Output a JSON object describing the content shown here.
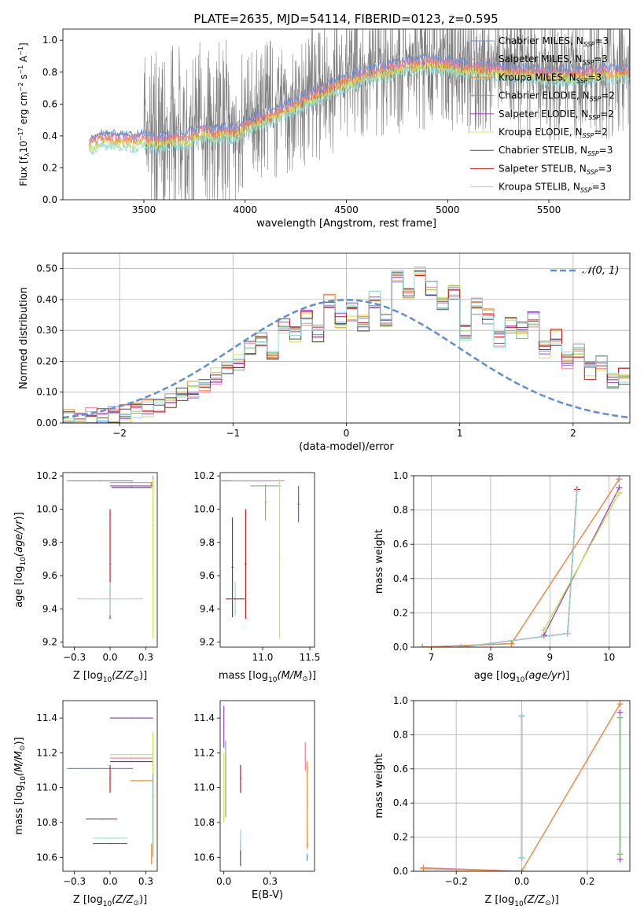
{
  "figure_title": "PLATE=2635, MJD=54114, FIBERID=0123, z=0.595",
  "colors": {
    "chabrier_miles": "#6a8fd8",
    "salpeter_miles": "#f07ca0",
    "kroupa_miles": "#f0903c",
    "chabrier_elodie": "#7fb07f",
    "salpeter_elodie": "#a040c8",
    "kroupa_elodie": "#c8e850",
    "chabrier_stelib": "#505050",
    "salpeter_stelib": "#c02020",
    "kroupa_stelib": "#90d8e0",
    "spectrum": "#808080",
    "gaussian": "#5b8fd6",
    "grid": "#b0b0b0"
  },
  "legend_models": [
    "Chabrier MILES, N_SSP=3",
    "Salpeter MILES, N_SSP=3",
    "Kroupa MILES, N_SSP=3",
    "Chabrier ELODIE, N_SSP=2",
    "Salpeter ELODIE, N_SSP=2",
    "Kroupa ELODIE, N_SSP=2",
    "Chabrier STELIB, N_SSP=3",
    "Salpeter STELIB, N_SSP=3",
    "Kroupa STELIB, N_SSP=3"
  ],
  "chart_data": [
    {
      "id": "spectrum",
      "type": "line",
      "xlabel": "wavelength [Angstrom, rest frame]",
      "ylabel": "Flux [f_λ 10^-17 erg cm^-2 s^-1 A^-1]",
      "xlim": [
        3100,
        5900
      ],
      "ylim": [
        0,
        1.07
      ],
      "xticks": [
        3500,
        4000,
        4500,
        5000,
        5500
      ],
      "yticks": [
        0.0,
        0.2,
        0.4,
        0.6,
        0.8,
        1.0
      ],
      "grid": false,
      "legend_loc": "upper right",
      "data_start": 3230,
      "noise_start": 3500,
      "continuum": {
        "x": [
          3230,
          3260,
          3300,
          3350,
          3400,
          3450,
          3500,
          3550,
          3600,
          3650,
          3700,
          3750,
          3800,
          3850,
          3900,
          3950,
          4000,
          4100,
          4200,
          4300,
          4400,
          4500,
          4600,
          4700,
          4800,
          4900,
          5000,
          5100,
          5200,
          5300,
          5400,
          5500,
          5600,
          5700,
          5800
        ],
        "y": [
          0.37,
          0.4,
          0.42,
          0.41,
          0.41,
          0.4,
          0.42,
          0.4,
          0.4,
          0.42,
          0.41,
          0.44,
          0.46,
          0.45,
          0.47,
          0.45,
          0.5,
          0.55,
          0.6,
          0.66,
          0.72,
          0.78,
          0.82,
          0.85,
          0.88,
          0.89,
          0.88,
          0.86,
          0.85,
          0.84,
          0.83,
          0.82,
          0.82,
          0.83,
          0.83
        ]
      }
    },
    {
      "id": "residuals",
      "type": "bar",
      "xlabel": "(data-model)/error",
      "ylabel": "Normed distribution",
      "xlim": [
        -2.5,
        2.5
      ],
      "ylim": [
        0,
        0.55
      ],
      "xticks": [
        -2,
        -1,
        0,
        1,
        2
      ],
      "yticks": [
        0.0,
        0.1,
        0.2,
        0.3,
        0.4,
        0.5
      ],
      "grid": true,
      "legend": "𝒩(0, 1)",
      "legend_loc": "upper right",
      "bin_width": 0.1,
      "bin_edges_from": -2.6,
      "counts": [
        0.01,
        0.015,
        0.015,
        0.02,
        0.025,
        0.025,
        0.03,
        0.04,
        0.05,
        0.06,
        0.075,
        0.09,
        0.11,
        0.13,
        0.15,
        0.17,
        0.2,
        0.24,
        0.27,
        0.23,
        0.32,
        0.29,
        0.34,
        0.29,
        0.39,
        0.33,
        0.36,
        0.32,
        0.4,
        0.34,
        0.47,
        0.42,
        0.48,
        0.43,
        0.39,
        0.42,
        0.29,
        0.38,
        0.34,
        0.27,
        0.32,
        0.3,
        0.34,
        0.24,
        0.28,
        0.2,
        0.23,
        0.17,
        0.19,
        0.14,
        0.15,
        0.11,
        0.12,
        0.09,
        0.09,
        0.07,
        0.06,
        0.05,
        0.04,
        0.04
      ],
      "gaussian": {
        "mean": 0,
        "sigma": 1
      }
    },
    {
      "id": "age_vs_Z",
      "type": "scatter",
      "xlabel": "Z [log10(Z/Z⊙)]",
      "ylabel": "age  [log10(age/yr)]",
      "xlim": [
        -0.33,
        0.33
      ],
      "ylim": [
        9.17,
        10.22
      ],
      "xticks": [
        -0.25,
        0.0,
        0.25
      ],
      "yticks": [
        9.2,
        9.4,
        9.6,
        9.8,
        10.0,
        10.2
      ],
      "grid": false,
      "points": [
        {
          "model": "chabrier_miles",
          "x": -0.07,
          "xerr": 0.23,
          "y": 10.17,
          "yerr": 0.0
        },
        {
          "model": "salpeter_miles",
          "x": 0.15,
          "xerr": 0.15,
          "y": 10.16,
          "yerr": 0.0
        },
        {
          "model": "kroupa_miles",
          "x": 0.29,
          "xerr": 0.01,
          "y": 10.15,
          "yerr": 0.01
        },
        {
          "model": "chabrier_elodie",
          "x": 0.3,
          "xerr": 0.005,
          "y": 9.9,
          "yerr": 0.3
        },
        {
          "model": "salpeter_elodie",
          "x": 0.15,
          "xerr": 0.15,
          "y": 10.14,
          "yerr": 0.0
        },
        {
          "model": "kroupa_elodie",
          "x": 0.3,
          "xerr": 0.005,
          "y": 9.7,
          "yerr": 0.48
        },
        {
          "model": "chabrier_stelib",
          "x": 0.15,
          "xerr": 0.14,
          "y": 10.13,
          "yerr": 0.0
        },
        {
          "model": "salpeter_stelib",
          "x": 0.0,
          "xerr": 0.0,
          "y": 9.67,
          "yerr": 0.33
        },
        {
          "model": "kroupa_stelib",
          "x": 0.0,
          "xerr": 0.23,
          "y": 9.46,
          "yerr": 0.1
        }
      ]
    },
    {
      "id": "age_vs_mass",
      "type": "scatter",
      "xlabel": "mass [log10(M/M⊙)]",
      "ylabel": "",
      "xlim": [
        10.55,
        11.55
      ],
      "ylim": [
        9.17,
        10.22
      ],
      "xticks": [
        11.0,
        11.5
      ],
      "yticks": [
        9.2,
        9.4,
        9.6,
        9.8,
        10.0,
        10.2
      ],
      "grid": false,
      "points": [
        {
          "model": "chabrier_miles",
          "x": 10.83,
          "xerr": 0.27,
          "y": 10.17,
          "yerr": 0.0
        },
        {
          "model": "salpeter_miles",
          "x": 10.95,
          "xerr": 0.28,
          "y": 10.17,
          "yerr": 0.0
        },
        {
          "model": "kroupa_miles",
          "x": 11.03,
          "xerr": 0.01,
          "y": 10.04,
          "yerr": 0.11
        },
        {
          "model": "chabrier_elodie",
          "x": 11.03,
          "xerr": 0.16,
          "y": 10.14,
          "yerr": 0.0
        },
        {
          "model": "salpeter_elodie",
          "x": 11.38,
          "xerr": 0.01,
          "y": 10.03,
          "yerr": 0.11
        },
        {
          "model": "kroupa_elodie",
          "x": 11.18,
          "xerr": 0.01,
          "y": 9.7,
          "yerr": 0.48
        },
        {
          "model": "chabrier_stelib",
          "x": 10.68,
          "xerr": 0.01,
          "y": 9.65,
          "yerr": 0.3
        },
        {
          "model": "salpeter_stelib",
          "x": 10.82,
          "xerr": 0.01,
          "y": 9.67,
          "yerr": 0.33
        },
        {
          "model": "kroupa_stelib",
          "x": 10.71,
          "xerr": 0.1,
          "y": 9.46,
          "yerr": 0.1
        },
        {
          "model": "salpeter_stelib",
          "x": 10.71,
          "xerr": 0.1,
          "y": 9.46,
          "yerr": 0.0
        }
      ]
    },
    {
      "id": "weight_vs_age",
      "type": "line",
      "xlabel": "age  [log10(age/yr)]",
      "ylabel": "mass weight",
      "xlim": [
        6.7,
        10.35
      ],
      "ylim": [
        0,
        1.0
      ],
      "xticks": [
        7,
        8,
        9,
        10
      ],
      "yticks": [
        0.0,
        0.2,
        0.4,
        0.6,
        0.8,
        1.0
      ],
      "grid": true,
      "series": [
        {
          "model": "chabrier_miles",
          "x": [
            6.85,
            8.35,
            10.17
          ],
          "y": [
            0.0,
            0.02,
            0.98
          ]
        },
        {
          "model": "salpeter_miles",
          "x": [
            6.85,
            8.35,
            10.17
          ],
          "y": [
            0.0,
            0.02,
            0.98
          ]
        },
        {
          "model": "kroupa_miles",
          "x": [
            6.85,
            8.35,
            10.17
          ],
          "y": [
            0.0,
            0.02,
            0.98
          ]
        },
        {
          "model": "chabrier_elodie",
          "x": [
            8.9,
            10.17
          ],
          "y": [
            0.1,
            0.9
          ]
        },
        {
          "model": "salpeter_elodie",
          "x": [
            8.9,
            10.17
          ],
          "y": [
            0.07,
            0.93
          ]
        },
        {
          "model": "kroupa_elodie",
          "x": [
            8.9,
            10.17
          ],
          "y": [
            0.1,
            0.9
          ]
        },
        {
          "model": "chabrier_stelib",
          "x": [
            7.5,
            9.3,
            9.46
          ],
          "y": [
            0.0,
            0.08,
            0.92
          ]
        },
        {
          "model": "salpeter_stelib",
          "x": [
            7.5,
            9.3,
            9.46
          ],
          "y": [
            0.0,
            0.08,
            0.92
          ]
        },
        {
          "model": "kroupa_stelib",
          "x": [
            7.5,
            9.3,
            9.46
          ],
          "y": [
            0.0,
            0.08,
            0.91
          ]
        }
      ]
    },
    {
      "id": "mass_vs_Z",
      "type": "scatter",
      "xlabel": "Z [log10(Z/Z⊙)]",
      "ylabel": "mass [log10(M/M⊙)]",
      "xlim": [
        -0.33,
        0.33
      ],
      "ylim": [
        10.52,
        11.5
      ],
      "xticks": [
        -0.25,
        0.0,
        0.25
      ],
      "yticks": [
        10.6,
        10.8,
        11.0,
        11.2,
        11.4
      ],
      "grid": false,
      "points": [
        {
          "model": "chabrier_miles",
          "x": -0.07,
          "xerr": 0.23,
          "y": 11.11,
          "yerr": 0.0
        },
        {
          "model": "salpeter_miles",
          "x": 0.15,
          "xerr": 0.15,
          "y": 11.17,
          "yerr": 0.0
        },
        {
          "model": "kroupa_miles",
          "x": 0.22,
          "xerr": 0.08,
          "y": 11.04,
          "yerr": 0.0
        },
        {
          "model": "chabrier_elodie",
          "x": 0.3,
          "xerr": 0.005,
          "y": 10.95,
          "yerr": 0.35
        },
        {
          "model": "salpeter_elodie",
          "x": 0.15,
          "xerr": 0.15,
          "y": 11.4,
          "yerr": 0.0
        },
        {
          "model": "kroupa_elodie",
          "x": 0.15,
          "xerr": 0.15,
          "y": 11.19,
          "yerr": 0.0
        },
        {
          "model": "chabrier_stelib",
          "x": 0.15,
          "xerr": 0.15,
          "y": 11.15,
          "yerr": 0.0
        },
        {
          "model": "salpeter_stelib",
          "x": 0.0,
          "xerr": 0.0,
          "y": 11.05,
          "yerr": 0.08
        },
        {
          "model": "salpeter_stelib",
          "x": -0.06,
          "xerr": 0.11,
          "y": 10.82,
          "yerr": 0.0
        },
        {
          "model": "kroupa_stelib",
          "x": 0.0,
          "xerr": 0.12,
          "y": 10.71,
          "yerr": 0.0
        },
        {
          "model": "chabrier_stelib",
          "x": 0.0,
          "xerr": 0.12,
          "y": 10.68,
          "yerr": 0.0
        },
        {
          "model": "kroupa_miles",
          "x": 0.29,
          "xerr": 0.0,
          "y": 10.62,
          "yerr": 0.06
        },
        {
          "model": "kroupa_elodie",
          "x": 0.3,
          "xerr": 0.0,
          "y": 11.2,
          "yerr": 0.12
        }
      ]
    },
    {
      "id": "mass_vs_ebv",
      "type": "scatter",
      "xlabel": "E(B-V)",
      "ylabel": "",
      "xlim": [
        -0.02,
        0.49
      ],
      "ylim": [
        10.52,
        11.5
      ],
      "xticks": [
        0.0,
        0.25
      ],
      "yticks": [
        10.6,
        10.8,
        11.0,
        11.2,
        11.4
      ],
      "grid": false,
      "points": [
        {
          "model": "salpeter_elodie",
          "x": 0.0,
          "xerr": 0.0,
          "y": 11.35,
          "yerr": 0.12
        },
        {
          "model": "chabrier_elodie",
          "x": 0.01,
          "xerr": 0.0,
          "y": 11.05,
          "yerr": 0.22
        },
        {
          "model": "kroupa_elodie",
          "x": 0.0,
          "xerr": 0.0,
          "y": 11.0,
          "yerr": 0.2
        },
        {
          "model": "salpeter_stelib",
          "x": 0.09,
          "xerr": 0.0,
          "y": 11.05,
          "yerr": 0.08
        },
        {
          "model": "chabrier_stelib",
          "x": 0.09,
          "xerr": 0.0,
          "y": 10.62,
          "yerr": 0.07
        },
        {
          "model": "kroupa_stelib",
          "x": 0.09,
          "xerr": 0.0,
          "y": 10.7,
          "yerr": 0.06
        },
        {
          "model": "salpeter_miles",
          "x": 0.44,
          "xerr": 0.0,
          "y": 11.18,
          "yerr": 0.08
        },
        {
          "model": "kroupa_miles",
          "x": 0.45,
          "xerr": 0.0,
          "y": 10.9,
          "yerr": 0.25
        },
        {
          "model": "chabrier_miles",
          "x": 0.45,
          "xerr": 0.0,
          "y": 10.6,
          "yerr": 0.02
        }
      ]
    },
    {
      "id": "weight_vs_Z",
      "type": "line",
      "xlabel": "Z [log10(Z/Z⊙)]",
      "ylabel": "mass weight",
      "xlim": [
        -0.33,
        0.33
      ],
      "ylim": [
        0,
        1.0
      ],
      "xticks": [
        -0.2,
        0.0,
        0.2
      ],
      "yticks": [
        0.0,
        0.2,
        0.4,
        0.6,
        0.8,
        1.0
      ],
      "grid": true,
      "series": [
        {
          "model": "chabrier_miles",
          "x": [
            -0.3,
            0.0,
            0.3
          ],
          "y": [
            0.02,
            0.0,
            0.98
          ]
        },
        {
          "model": "salpeter_miles",
          "x": [
            -0.3,
            0.0,
            0.3
          ],
          "y": [
            0.02,
            0.0,
            0.98
          ]
        },
        {
          "model": "kroupa_miles",
          "x": [
            -0.3,
            0.0,
            0.3
          ],
          "y": [
            0.015,
            0.0,
            0.98
          ]
        },
        {
          "model": "salpeter_elodie",
          "x": [
            0.3,
            0.3
          ],
          "y": [
            0.07,
            0.93
          ]
        },
        {
          "model": "kroupa_elodie",
          "x": [
            0.3,
            0.3
          ],
          "y": [
            0.1,
            0.9
          ]
        },
        {
          "model": "chabrier_elodie",
          "x": [
            0.3,
            0.3
          ],
          "y": [
            0.1,
            0.9
          ]
        },
        {
          "model": "chabrier_stelib",
          "x": [
            0.0,
            0.0
          ],
          "y": [
            0.08,
            0.91
          ]
        },
        {
          "model": "salpeter_stelib",
          "x": [
            0.0,
            0.0
          ],
          "y": [
            0.08,
            0.91
          ]
        },
        {
          "model": "kroupa_stelib",
          "x": [
            0.0,
            0.0
          ],
          "y": [
            0.08,
            0.91
          ]
        }
      ]
    }
  ]
}
